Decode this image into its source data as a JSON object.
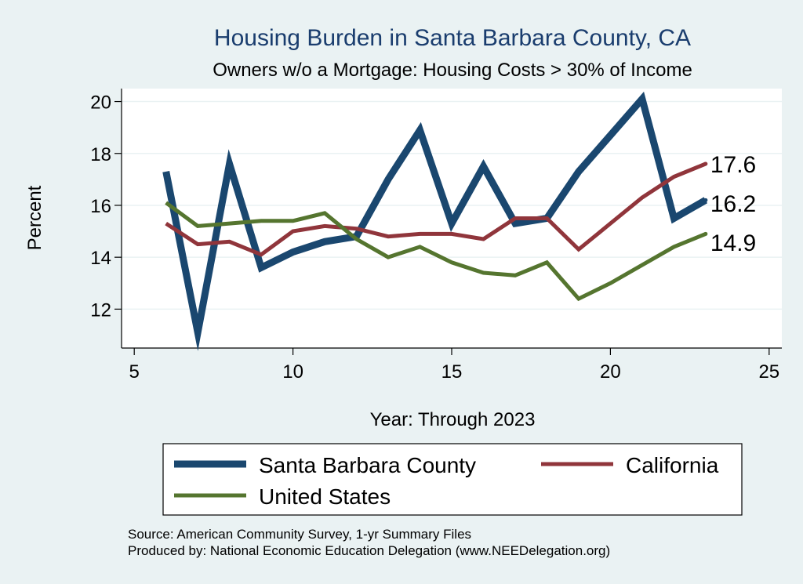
{
  "chart_data": {
    "type": "line",
    "title": "Housing Burden in Santa Barbara County, CA",
    "subtitle": "Owners w/o a Mortgage: Housing Costs > 30% of Income",
    "xlabel": "Year: Through 2023",
    "ylabel": "Percent",
    "xlim": [
      4.6,
      25.4
    ],
    "ylim": [
      10.5,
      20.5
    ],
    "xticks": [
      5,
      10,
      15,
      20,
      25
    ],
    "yticks": [
      12,
      14,
      16,
      18,
      20
    ],
    "grid": true,
    "legend_position": "bottom",
    "series": [
      {
        "name": "Santa Barbara County",
        "color": "#1a476f",
        "x": [
          6,
          7,
          8,
          9,
          10,
          11,
          12,
          13,
          14,
          15,
          16,
          17,
          18,
          19,
          20,
          21,
          22,
          23
        ],
        "values": [
          17.3,
          11.1,
          17.6,
          13.6,
          14.2,
          14.6,
          14.8,
          17.0,
          18.9,
          15.3,
          17.5,
          15.3,
          15.5,
          17.3,
          18.7,
          20.1,
          15.5,
          16.2
        ],
        "end_label": "16.2"
      },
      {
        "name": "California",
        "color": "#90353b",
        "x": [
          6,
          7,
          8,
          9,
          10,
          11,
          12,
          13,
          14,
          15,
          16,
          17,
          18,
          19,
          20,
          21,
          22,
          23
        ],
        "values": [
          15.3,
          14.5,
          14.6,
          14.1,
          15.0,
          15.2,
          15.1,
          14.8,
          14.9,
          14.9,
          14.7,
          15.5,
          15.5,
          14.3,
          15.3,
          16.3,
          17.1,
          17.6
        ],
        "end_label": "17.6"
      },
      {
        "name": "United States",
        "color": "#55752f",
        "x": [
          6,
          7,
          8,
          9,
          10,
          11,
          12,
          13,
          14,
          15,
          16,
          17,
          18,
          19,
          20,
          21,
          22,
          23
        ],
        "values": [
          16.1,
          15.2,
          15.3,
          15.4,
          15.4,
          15.7,
          14.7,
          14.0,
          14.4,
          13.8,
          13.4,
          13.3,
          13.8,
          12.4,
          13.0,
          13.7,
          14.4,
          14.9
        ],
        "end_label": "14.9"
      }
    ]
  },
  "notes": {
    "source": "Source: American Community Survey, 1-yr Summary Files",
    "produced_by": "Produced by: National Economic Education Delegation (www.NEEDelegation.org)"
  }
}
